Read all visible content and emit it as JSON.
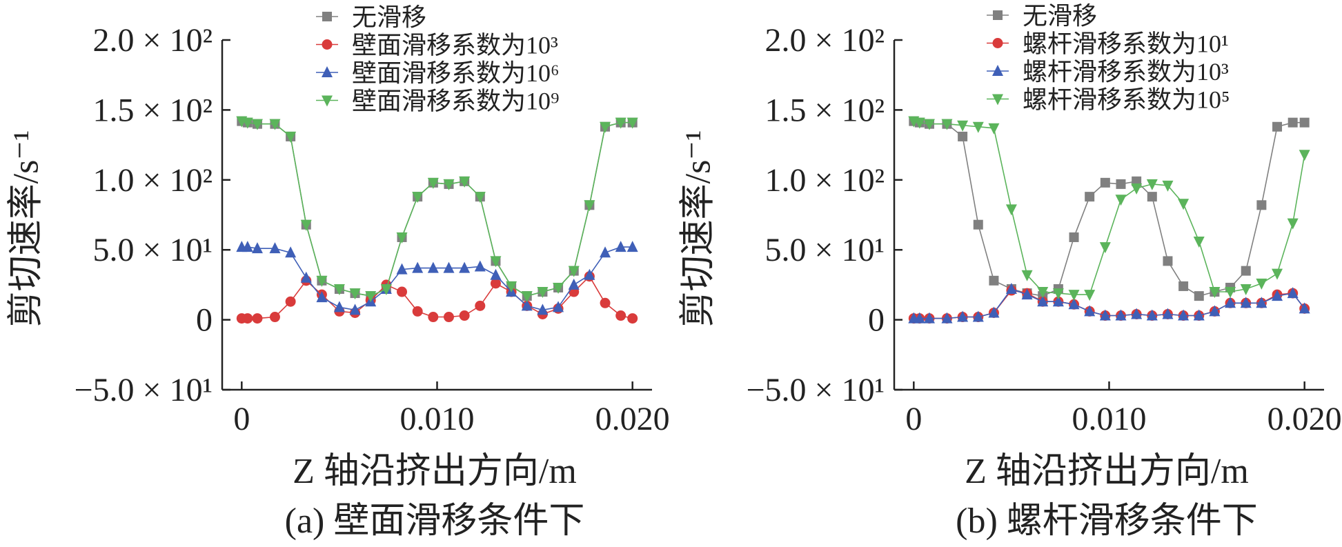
{
  "chart_data": [
    {
      "type": "line",
      "caption": "(a) 壁面滑移条件下",
      "xlabel": "Z 轴沿挤出方向/m",
      "ylabel": "剪切速率/s⁻¹",
      "xlim": [
        -0.001,
        0.021
      ],
      "ylim": [
        -50,
        200
      ],
      "x_ticks": [
        0,
        0.01,
        0.02
      ],
      "x_tick_labels": [
        "0",
        "0.010",
        "0.020"
      ],
      "y_ticks": [
        -50,
        0,
        50,
        100,
        150,
        200
      ],
      "y_tick_labels": [
        "−5.0 × 10¹",
        "0",
        "5.0 × 10¹",
        "1.0 × 10²",
        "1.5 × 10²",
        "2.0 × 10²"
      ],
      "legend_position": "top",
      "series": [
        {
          "name": "无滑移",
          "color": "#808080",
          "marker": "square",
          "x": [
            0,
            0.0003,
            0.0008,
            0.0017,
            0.0025,
            0.0033,
            0.0041,
            0.005,
            0.0058,
            0.0066,
            0.0074,
            0.0082,
            0.009,
            0.0098,
            0.0106,
            0.0114,
            0.0122,
            0.013,
            0.0138,
            0.0146,
            0.0154,
            0.0162,
            0.017,
            0.0178,
            0.0186,
            0.0194,
            0.02
          ],
          "y": [
            142,
            141,
            140,
            140,
            131,
            68,
            28,
            22,
            19,
            17,
            22,
            59,
            88,
            98,
            97,
            99,
            88,
            42,
            24,
            17,
            20,
            23,
            35,
            82,
            138,
            141,
            141
          ]
        },
        {
          "name": "壁面滑移系数为10³",
          "color": "#d93b3b",
          "marker": "circle",
          "x": [
            0,
            0.0003,
            0.0008,
            0.0017,
            0.0025,
            0.0033,
            0.0041,
            0.005,
            0.0058,
            0.0066,
            0.0074,
            0.0082,
            0.009,
            0.0098,
            0.0106,
            0.0114,
            0.0122,
            0.013,
            0.0138,
            0.0146,
            0.0154,
            0.0162,
            0.017,
            0.0178,
            0.0186,
            0.0194,
            0.02
          ],
          "y": [
            1,
            1,
            1,
            2,
            13,
            28,
            18,
            6,
            5,
            14,
            25,
            20,
            6,
            2,
            2,
            3,
            10,
            26,
            20,
            10,
            4,
            8,
            20,
            31,
            12,
            3,
            1
          ]
        },
        {
          "name": "壁面滑移系数为10⁶",
          "color": "#3f5fb7",
          "marker": "triangle-up",
          "x": [
            0,
            0.0003,
            0.0008,
            0.0017,
            0.0025,
            0.0033,
            0.0041,
            0.005,
            0.0058,
            0.0066,
            0.0074,
            0.0082,
            0.009,
            0.0098,
            0.0106,
            0.0114,
            0.0122,
            0.013,
            0.0138,
            0.0146,
            0.0154,
            0.0162,
            0.017,
            0.0178,
            0.0186,
            0.0194,
            0.02
          ],
          "y": [
            52,
            52,
            51,
            51,
            48,
            30,
            16,
            9,
            7,
            13,
            22,
            36,
            37,
            37,
            37,
            37,
            38,
            32,
            20,
            10,
            7,
            9,
            25,
            32,
            48,
            52,
            52
          ]
        },
        {
          "name": "壁面滑移系数为10⁹",
          "color": "#5bb45b",
          "marker": "triangle-down",
          "x": [
            0,
            0.0003,
            0.0008,
            0.0017,
            0.0025,
            0.0033,
            0.0041,
            0.005,
            0.0058,
            0.0066,
            0.0074,
            0.0082,
            0.009,
            0.0098,
            0.0106,
            0.0114,
            0.0122,
            0.013,
            0.0138,
            0.0146,
            0.0154,
            0.0162,
            0.017,
            0.0178,
            0.0186,
            0.0194,
            0.02
          ],
          "y": [
            142,
            141,
            140,
            140,
            131,
            68,
            28,
            22,
            19,
            17,
            22,
            59,
            88,
            98,
            97,
            99,
            88,
            42,
            24,
            17,
            20,
            23,
            35,
            82,
            138,
            141,
            141
          ]
        }
      ]
    },
    {
      "type": "line",
      "caption": "(b) 螺杆滑移条件下",
      "xlabel": "Z 轴沿挤出方向/m",
      "ylabel": "剪切速率/s⁻¹",
      "xlim": [
        -0.001,
        0.021
      ],
      "ylim": [
        -50,
        200
      ],
      "x_ticks": [
        0,
        0.01,
        0.02
      ],
      "x_tick_labels": [
        "0",
        "0.010",
        "0.020"
      ],
      "y_ticks": [
        -50,
        0,
        50,
        100,
        150,
        200
      ],
      "y_tick_labels": [
        "−5.0 × 10¹",
        "0",
        "5.0 × 10¹",
        "1.0 × 10²",
        "1.5 × 10²",
        "2.0 × 10²"
      ],
      "legend_position": "top",
      "series": [
        {
          "name": "无滑移",
          "color": "#808080",
          "marker": "square",
          "x": [
            0,
            0.0003,
            0.0008,
            0.0017,
            0.0025,
            0.0033,
            0.0041,
            0.005,
            0.0058,
            0.0066,
            0.0074,
            0.0082,
            0.009,
            0.0098,
            0.0106,
            0.0114,
            0.0122,
            0.013,
            0.0138,
            0.0146,
            0.0154,
            0.0162,
            0.017,
            0.0178,
            0.0186,
            0.0194,
            0.02
          ],
          "y": [
            142,
            141,
            140,
            140,
            131,
            68,
            28,
            22,
            19,
            17,
            22,
            59,
            88,
            98,
            97,
            99,
            88,
            42,
            24,
            17,
            20,
            23,
            35,
            82,
            138,
            141,
            141
          ]
        },
        {
          "name": "螺杆滑移系数为10¹",
          "color": "#d93b3b",
          "marker": "circle",
          "x": [
            0,
            0.0003,
            0.0008,
            0.0017,
            0.0025,
            0.0033,
            0.0041,
            0.005,
            0.0058,
            0.0066,
            0.0074,
            0.0082,
            0.009,
            0.0098,
            0.0106,
            0.0114,
            0.0122,
            0.013,
            0.0138,
            0.0146,
            0.0154,
            0.0162,
            0.017,
            0.0178,
            0.0186,
            0.0194,
            0.02
          ],
          "y": [
            1,
            1,
            1,
            1,
            2,
            2,
            5,
            21,
            19,
            13,
            13,
            11,
            6,
            3,
            3,
            4,
            3,
            4,
            3,
            3,
            6,
            12,
            12,
            12,
            18,
            19,
            8
          ]
        },
        {
          "name": "螺杆滑移系数为10³",
          "color": "#3f5fb7",
          "marker": "triangle-up",
          "x": [
            0,
            0.0003,
            0.0008,
            0.0017,
            0.0025,
            0.0033,
            0.0041,
            0.005,
            0.0058,
            0.0066,
            0.0074,
            0.0082,
            0.009,
            0.0098,
            0.0106,
            0.0114,
            0.0122,
            0.013,
            0.0138,
            0.0146,
            0.0154,
            0.0162,
            0.017,
            0.0178,
            0.0186,
            0.0194,
            0.02
          ],
          "y": [
            1,
            1,
            1,
            1,
            2,
            2,
            5,
            22,
            18,
            13,
            13,
            11,
            6,
            3,
            3,
            4,
            3,
            4,
            3,
            3,
            6,
            12,
            12,
            12,
            17,
            19,
            8
          ]
        },
        {
          "name": "螺杆滑移系数为10⁵",
          "color": "#5bb45b",
          "marker": "triangle-down",
          "x": [
            0,
            0.0003,
            0.0008,
            0.0017,
            0.0025,
            0.0033,
            0.0041,
            0.005,
            0.0058,
            0.0066,
            0.0074,
            0.0082,
            0.009,
            0.0098,
            0.0106,
            0.0114,
            0.0122,
            0.013,
            0.0138,
            0.0146,
            0.0154,
            0.0162,
            0.017,
            0.0178,
            0.0186,
            0.0194,
            0.02
          ],
          "y": [
            142,
            141,
            140,
            140,
            139,
            138,
            137,
            79,
            32,
            20,
            19,
            18,
            18,
            52,
            86,
            94,
            97,
            96,
            83,
            56,
            20,
            20,
            22,
            26,
            33,
            69,
            118
          ]
        }
      ]
    }
  ]
}
